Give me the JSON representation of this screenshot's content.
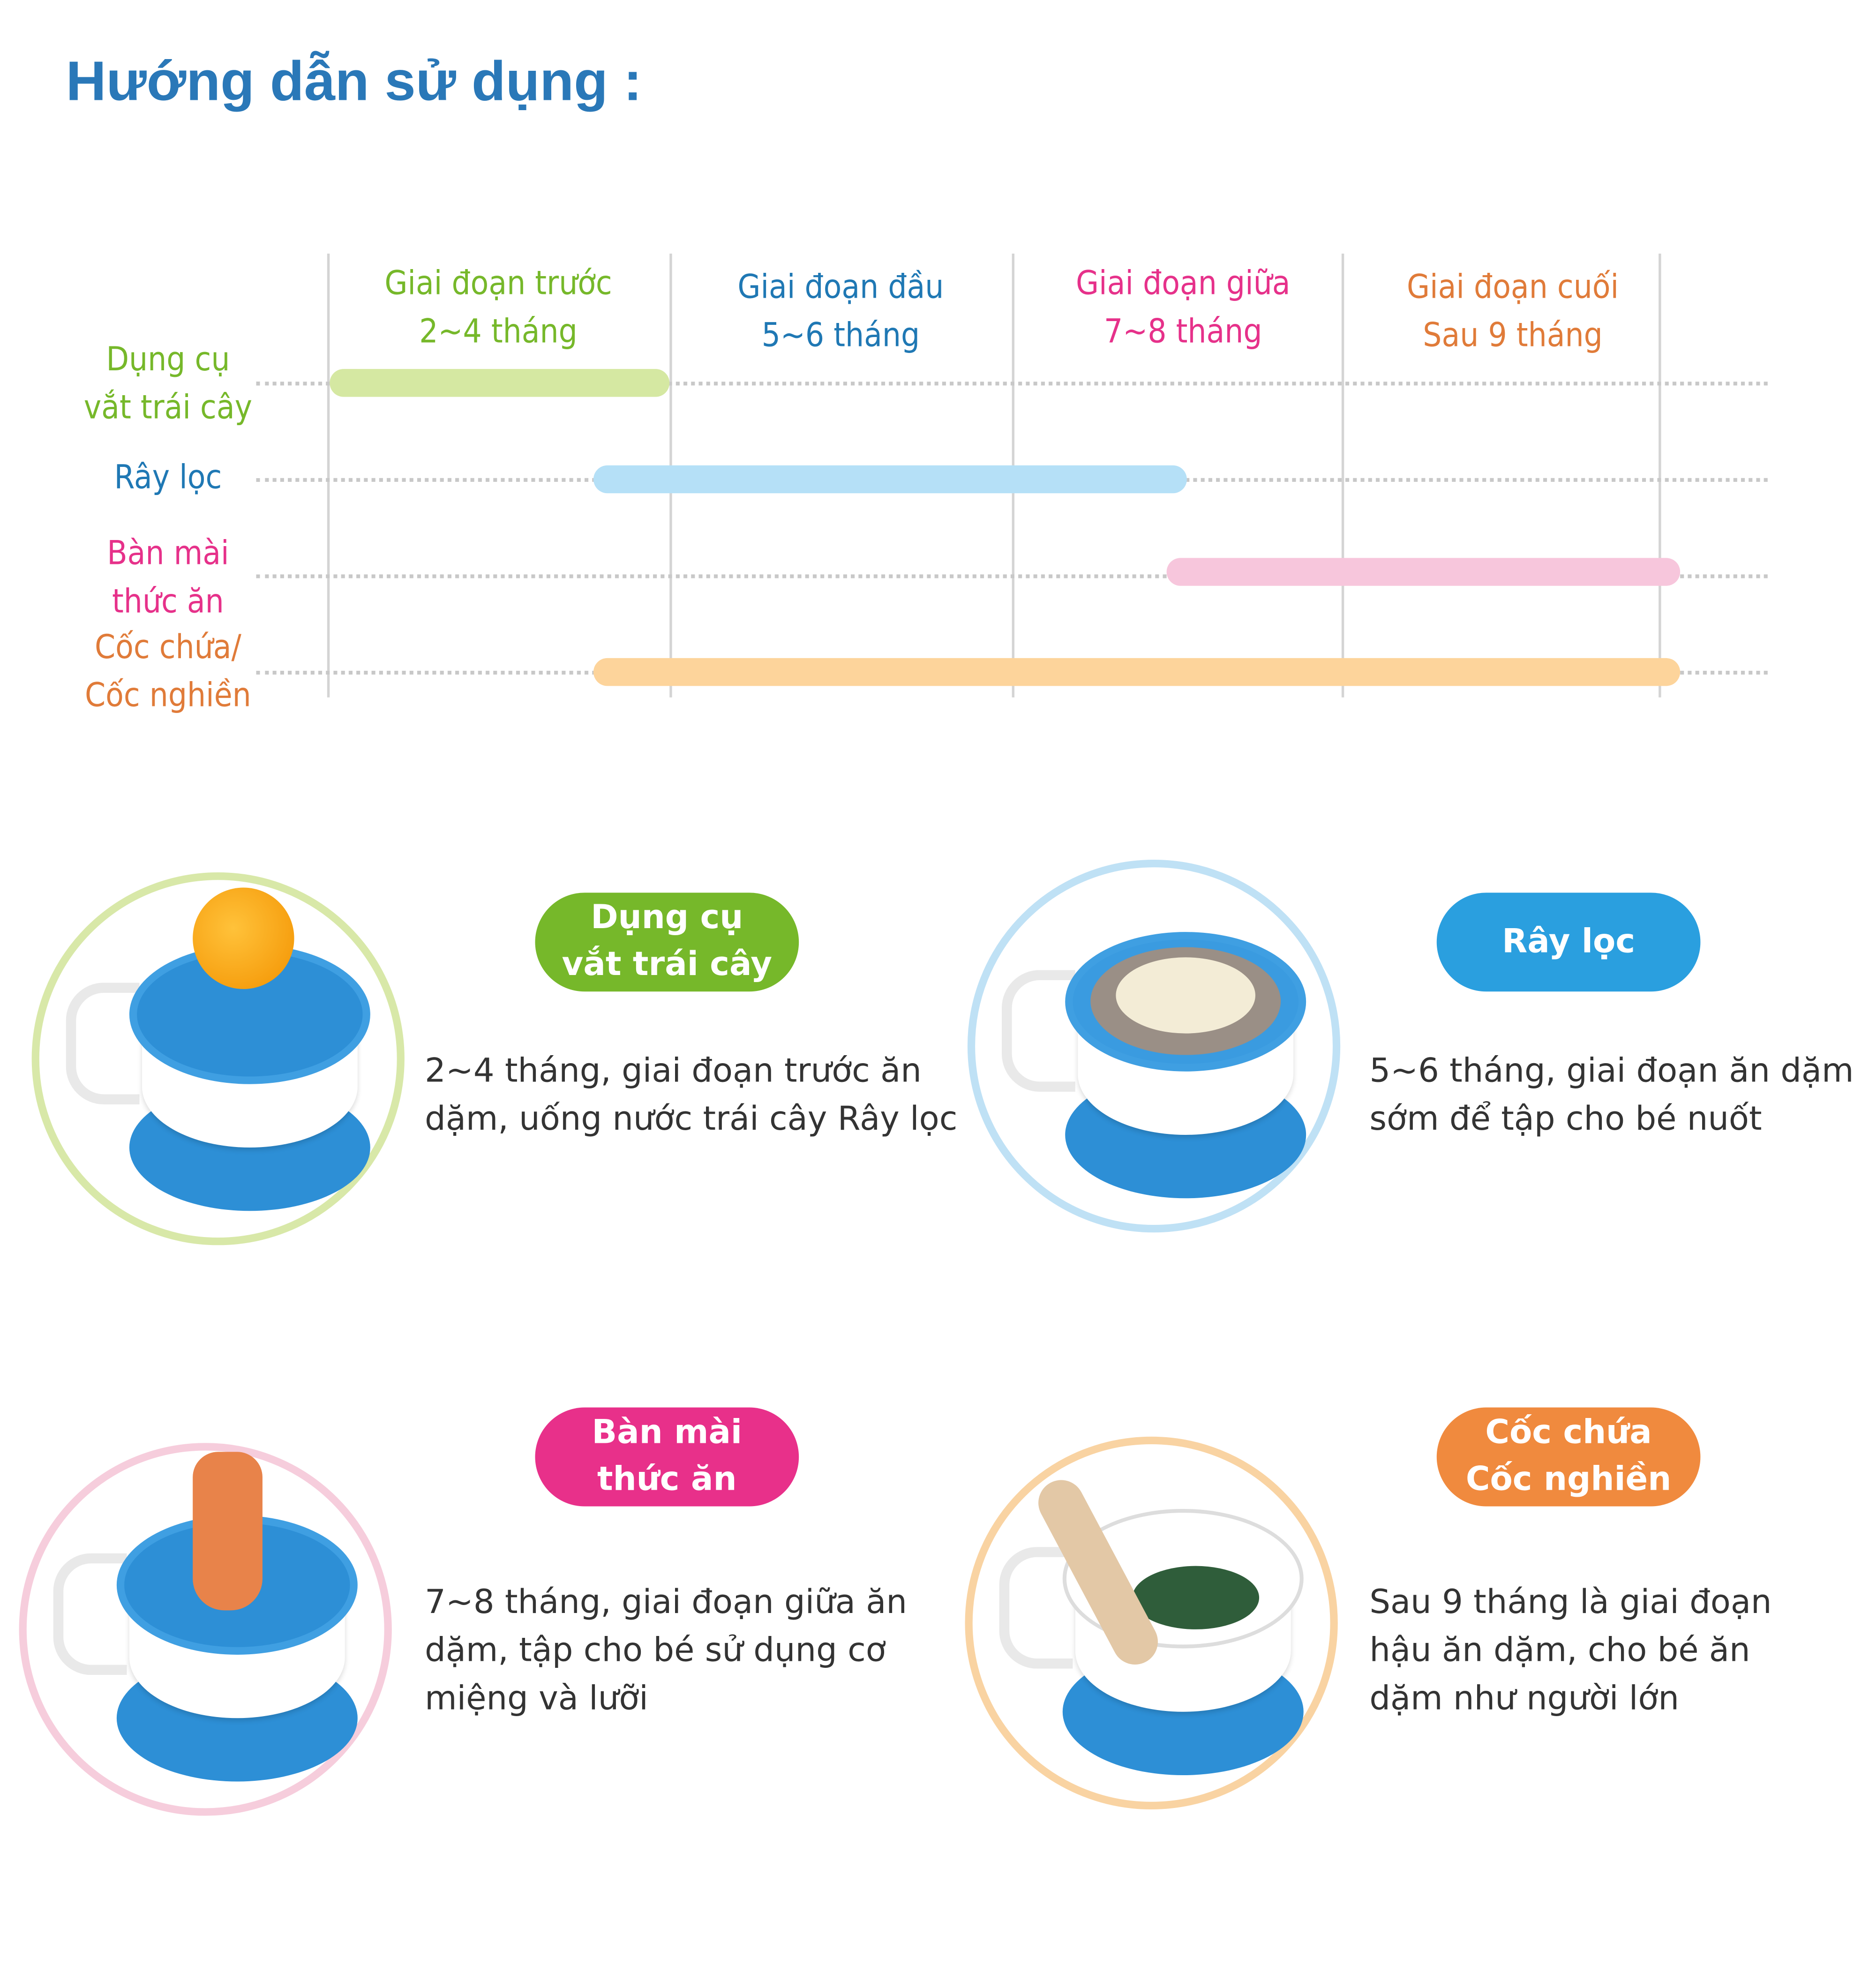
{
  "title": "Hướng dẫn sử dụng :",
  "timeline": {
    "stages": [
      {
        "line1": "Giai đoạn trước",
        "line2": "2~4 tháng",
        "color": "#76b82a"
      },
      {
        "line1": "Giai đoạn đầu",
        "line2": "5~6 tháng",
        "color": "#1f78b4"
      },
      {
        "line1": "Giai đoạn giữa",
        "line2": "7~8 tháng",
        "color": "#e6318a"
      },
      {
        "line1": "Giai đoạn cuối",
        "line2": "Sau 9 tháng",
        "color": "#e07b39"
      }
    ],
    "rows": [
      {
        "line1": "Dụng cụ",
        "line2": "vắt trái cây",
        "color": "#76b82a",
        "bar_color": "#d5e8a2",
        "start_stage": 0,
        "end_stage": 1
      },
      {
        "line1": "Rây lọc",
        "line2": "",
        "color": "#1f78b4",
        "bar_color": "#b5e0f7",
        "start_stage": 0.77,
        "end_stage": 2.53
      },
      {
        "line1": "Bàn mài",
        "line2": "thức ăn",
        "color": "#e6318a",
        "bar_color": "#f7c6dc",
        "start_stage": 2.46,
        "end_stage": 4.25
      },
      {
        "line1": "Cốc chứa/",
        "line2": "Cốc nghiền",
        "color": "#e07b39",
        "bar_color": "#fdd49b",
        "start_stage": 0.77,
        "end_stage": 4.25
      }
    ]
  },
  "cards": [
    {
      "pill_line1": "Dụng cụ",
      "pill_line2": "vắt trái cây",
      "pill_color": "#76b82a",
      "ring_color": "#d8e8a8",
      "desc": [
        "2~4 tháng, giai đoạn trước ăn",
        "dặm, uống nước trái cây Rây lọc"
      ],
      "icon": "fruit-juicer"
    },
    {
      "pill_line1": "Rây lọc",
      "pill_line2": "",
      "pill_color": "#2a9fdf",
      "ring_color": "#bfe1f5",
      "desc": [
        "5~6 tháng, giai đoạn ăn dặm",
        "sớm để tập cho bé nuốt"
      ],
      "icon": "strainer"
    },
    {
      "pill_line1": "Bàn mài",
      "pill_line2": "thức ăn",
      "pill_color": "#e8308a",
      "ring_color": "#f6cddc",
      "desc": [
        "7~8 tháng, giai đoạn giữa ăn",
        "dặm, tập cho bé sử dụng cơ",
        "miệng và lưỡi"
      ],
      "icon": "grater"
    },
    {
      "pill_line1": "Cốc chứa",
      "pill_line2": "Cốc nghiền",
      "pill_color": "#f08a3e",
      "ring_color": "#f9d3a2",
      "desc": [
        "Sau 9 tháng là giai đoạn",
        "hậu ăn dặm, cho bé ăn",
        "dặm như người lớn"
      ],
      "icon": "mortar-bowl"
    }
  ]
}
